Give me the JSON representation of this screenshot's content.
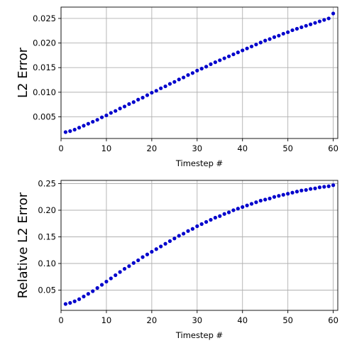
{
  "chart_data": [
    {
      "type": "scatter",
      "title": "",
      "xlabel": "Timestep #",
      "ylabel": "L2 Error",
      "xlim": [
        0,
        61
      ],
      "ylim": [
        0.0006,
        0.0273
      ],
      "xticks": [
        0,
        10,
        20,
        30,
        40,
        50,
        60
      ],
      "xtick_labels": [
        "0",
        "10",
        "20",
        "30",
        "40",
        "50",
        "60"
      ],
      "yticks": [
        0.005,
        0.01,
        0.015,
        0.02,
        0.025
      ],
      "ytick_labels": [
        "0.005",
        "0.010",
        "0.015",
        "0.020",
        "0.025"
      ],
      "grid": true,
      "marker_color": "#0000cc",
      "series": [
        {
          "x": [
            1,
            2,
            3,
            4,
            5,
            6,
            7,
            8,
            9,
            10,
            11,
            12,
            13,
            14,
            15,
            16,
            17,
            18,
            19,
            20,
            21,
            22,
            23,
            24,
            25,
            26,
            27,
            28,
            29,
            30,
            31,
            32,
            33,
            34,
            35,
            36,
            37,
            38,
            39,
            40,
            41,
            42,
            43,
            44,
            45,
            46,
            47,
            48,
            49,
            50,
            51,
            52,
            53,
            54,
            55,
            56,
            57,
            58,
            59,
            60
          ],
          "values": [
            0.0019,
            0.0021,
            0.0024,
            0.0028,
            0.0032,
            0.0036,
            0.004,
            0.0044,
            0.0049,
            0.0053,
            0.0058,
            0.0062,
            0.0067,
            0.0071,
            0.0076,
            0.008,
            0.0085,
            0.0089,
            0.0094,
            0.0099,
            0.0103,
            0.0108,
            0.0112,
            0.0117,
            0.0121,
            0.0126,
            0.013,
            0.0135,
            0.0139,
            0.0144,
            0.0148,
            0.0152,
            0.0157,
            0.0161,
            0.0165,
            0.0169,
            0.0173,
            0.0177,
            0.0181,
            0.0185,
            0.0189,
            0.0193,
            0.0197,
            0.0201,
            0.0205,
            0.0208,
            0.0212,
            0.0215,
            0.0219,
            0.0222,
            0.0226,
            0.0229,
            0.0232,
            0.0235,
            0.0238,
            0.0241,
            0.0244,
            0.0247,
            0.025,
            0.026
          ]
        }
      ]
    },
    {
      "type": "scatter",
      "title": "",
      "xlabel": "Timestep #",
      "ylabel": "Relative L2 Error",
      "xlim": [
        0,
        61
      ],
      "ylim": [
        0.012,
        0.256
      ],
      "xticks": [
        0,
        10,
        20,
        30,
        40,
        50,
        60
      ],
      "xtick_labels": [
        "0",
        "10",
        "20",
        "30",
        "40",
        "50",
        "60"
      ],
      "yticks": [
        0.05,
        0.1,
        0.15,
        0.2,
        0.25
      ],
      "ytick_labels": [
        "0.05",
        "0.10",
        "0.15",
        "0.20",
        "0.25"
      ],
      "grid": true,
      "marker_color": "#0000cc",
      "series": [
        {
          "x": [
            1,
            2,
            3,
            4,
            5,
            6,
            7,
            8,
            9,
            10,
            11,
            12,
            13,
            14,
            15,
            16,
            17,
            18,
            19,
            20,
            21,
            22,
            23,
            24,
            25,
            26,
            27,
            28,
            29,
            30,
            31,
            32,
            33,
            34,
            35,
            36,
            37,
            38,
            39,
            40,
            41,
            42,
            43,
            44,
            45,
            46,
            47,
            48,
            49,
            50,
            51,
            52,
            53,
            54,
            55,
            56,
            57,
            58,
            59,
            60
          ],
          "values": [
            0.024,
            0.026,
            0.029,
            0.033,
            0.038,
            0.043,
            0.048,
            0.054,
            0.06,
            0.066,
            0.072,
            0.078,
            0.084,
            0.09,
            0.095,
            0.101,
            0.106,
            0.112,
            0.117,
            0.122,
            0.127,
            0.132,
            0.137,
            0.142,
            0.147,
            0.152,
            0.156,
            0.161,
            0.165,
            0.17,
            0.174,
            0.178,
            0.182,
            0.186,
            0.189,
            0.193,
            0.196,
            0.2,
            0.203,
            0.206,
            0.209,
            0.212,
            0.215,
            0.218,
            0.22,
            0.222,
            0.225,
            0.227,
            0.229,
            0.231,
            0.233,
            0.235,
            0.237,
            0.238,
            0.24,
            0.241,
            0.243,
            0.244,
            0.245,
            0.247
          ]
        }
      ]
    }
  ]
}
